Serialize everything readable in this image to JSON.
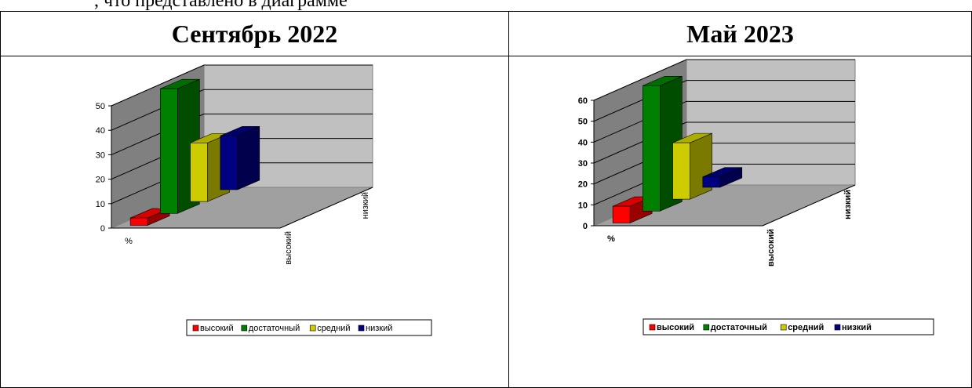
{
  "top_text": ", что представлено в диаграмме",
  "headers": [
    "Сентябрь 2022",
    "Май 2023"
  ],
  "colors": {
    "высокий": "#ff0000",
    "достаточный": "#008000",
    "средний": "#cccc00",
    "низкий": "#000080"
  },
  "chart_data": [
    {
      "type": "bar",
      "title": "",
      "categories": [
        "%"
      ],
      "series": [
        {
          "name": "высокий",
          "values": [
            3
          ]
        },
        {
          "name": "достаточный",
          "values": [
            51
          ]
        },
        {
          "name": "средний",
          "values": [
            24
          ]
        },
        {
          "name": "низкий",
          "values": [
            22
          ]
        }
      ],
      "ylim": [
        0,
        50
      ],
      "yticks": [
        "0",
        "10",
        "20",
        "30",
        "40",
        "50"
      ],
      "depth_labels": [
        "высокий",
        "низкий"
      ],
      "grid": true,
      "legend_position": "bottom"
    },
    {
      "type": "bar",
      "title": "",
      "categories": [
        "%"
      ],
      "series": [
        {
          "name": "высокий",
          "values": [
            8
          ]
        },
        {
          "name": "достаточный",
          "values": [
            60
          ]
        },
        {
          "name": "средний",
          "values": [
            27
          ]
        },
        {
          "name": "низкий",
          "values": [
            5
          ]
        }
      ],
      "ylim": [
        0,
        60
      ],
      "yticks": [
        "0",
        "10",
        "20",
        "30",
        "40",
        "50",
        "60"
      ],
      "depth_labels": [
        "высокий",
        "низкий"
      ],
      "grid": true,
      "legend_position": "bottom",
      "bold_labels": true
    }
  ]
}
